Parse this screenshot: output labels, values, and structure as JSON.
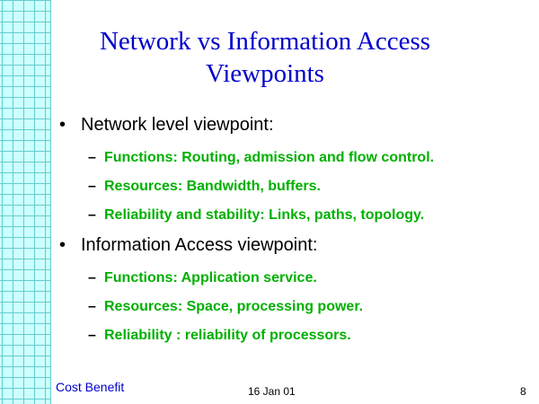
{
  "slide": {
    "title_line1": "Network vs Information Access",
    "title_line2": "Viewpoints",
    "sections": [
      {
        "heading": "Network level viewpoint:",
        "items": [
          "Functions: Routing, admission and flow control.",
          "Resources: Bandwidth, buffers.",
          "Reliability and stability: Links, paths, topology."
        ]
      },
      {
        "heading": "Information Access viewpoint:",
        "items": [
          "Functions: Application service.",
          "Resources: Space, processing power.",
          "Reliability : reliability of processors."
        ]
      }
    ],
    "bullet_glyph": "•",
    "dash_glyph": "–"
  },
  "footer": {
    "left": "Cost Benefit",
    "center": "16 Jan 01",
    "page_number": "8"
  },
  "colors": {
    "title": "#0000cc",
    "sub_items": "#00b000",
    "grid_fill": "#ccffff",
    "grid_lines": "#66cccc"
  }
}
